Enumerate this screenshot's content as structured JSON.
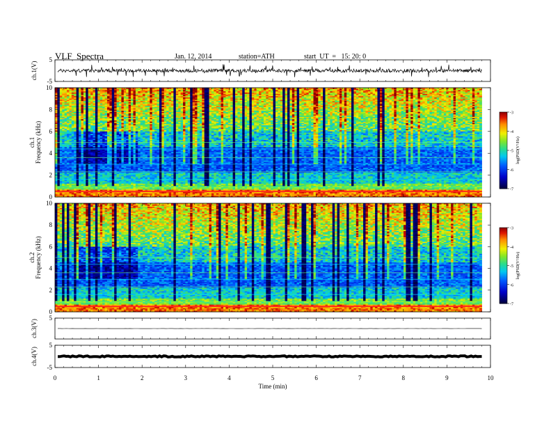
{
  "header": {
    "title": "VLF  Spectra",
    "date": "Jan. 12, 2014",
    "station": "station=ATH",
    "start": "start  UT  =   15: 20: 0"
  },
  "chart_data": [
    {
      "type": "line",
      "panel": "ch1-waveform",
      "ylabel": "ch.1(V)",
      "ylim": [
        -5,
        5
      ],
      "yticks": [
        5,
        -5
      ],
      "xlim": [
        0,
        10
      ],
      "x_unit": "min",
      "baseline": 0,
      "note": "noisy waveform around 0 V with spikes"
    },
    {
      "type": "heatmap",
      "panel": "ch1-spectrogram",
      "ylabel": "Frequency (kHz)",
      "channel_label": "ch.1",
      "ylim": [
        0,
        10
      ],
      "yticks": [
        0,
        2,
        4,
        6,
        8,
        10
      ],
      "xlim": [
        0,
        10
      ],
      "data_end_min": 9.8,
      "colorbar": {
        "label": "log(PSD(V²/Hz)",
        "range": [
          -7,
          -3
        ],
        "ticks": [
          -3,
          -4,
          -5,
          -6,
          -7
        ]
      }
    },
    {
      "type": "heatmap",
      "panel": "ch2-spectrogram",
      "ylabel": "Frequency (kHz)",
      "channel_label": "ch.2",
      "ylim": [
        0,
        10
      ],
      "yticks": [
        0,
        2,
        4,
        6,
        8,
        10
      ],
      "xlim": [
        0,
        10
      ],
      "data_end_min": 9.8,
      "colorbar": {
        "label": "log(PSD(V²/Hz)",
        "range": [
          -7,
          -3
        ],
        "ticks": [
          -3,
          -4,
          -5,
          -6,
          -7
        ]
      }
    },
    {
      "type": "line",
      "panel": "ch3-waveform",
      "ylabel": "ch.3(V)",
      "ylim": [
        -5,
        5
      ],
      "yticks": [
        5
      ],
      "xlim": [
        0,
        10
      ],
      "baseline": 0,
      "note": "flat trace near 0 V"
    },
    {
      "type": "line",
      "panel": "ch4-waveform",
      "ylabel": "ch.4(V)",
      "ylim": [
        -5,
        5
      ],
      "yticks": [
        5,
        -5
      ],
      "xlim": [
        0,
        10
      ],
      "baseline": 0,
      "note": "thick flat trace near 0 V",
      "xlabel": "Time  (min)",
      "xticks": [
        0,
        1,
        2,
        3,
        4,
        5,
        6,
        7,
        8,
        9,
        10
      ]
    }
  ]
}
